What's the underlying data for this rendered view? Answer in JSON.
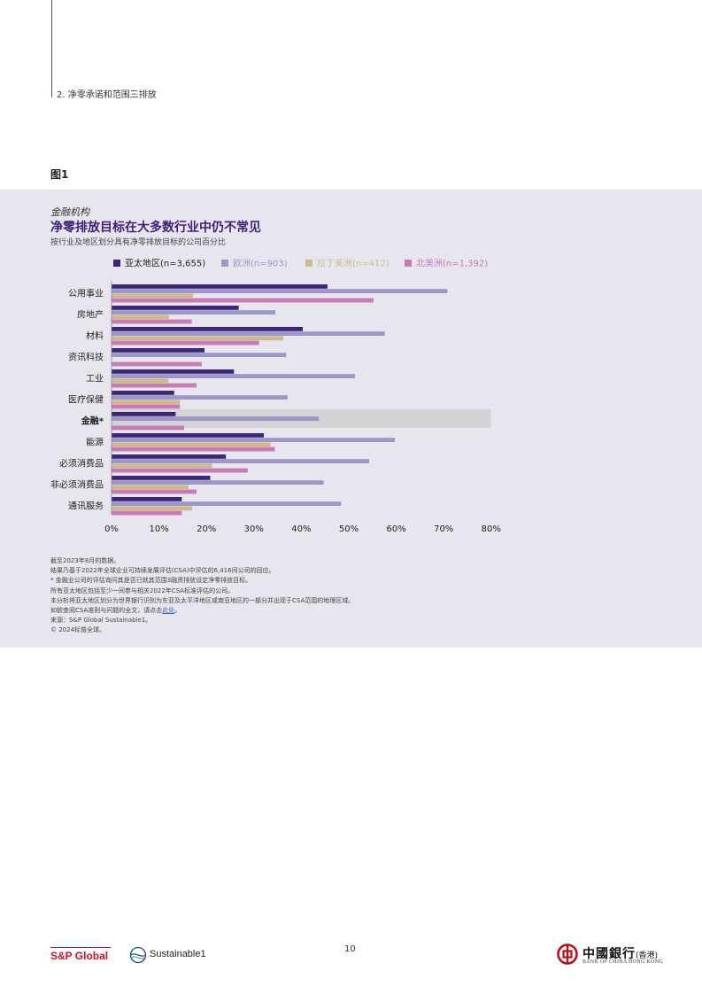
{
  "header": {
    "section": "2. 净零承诺和范围三排放"
  },
  "figure_label": "图1",
  "chart_data": {
    "type": "bar",
    "orientation": "horizontal",
    "kicker": "金融机构",
    "title": "净零排放目标在大多数行业中仍不常见",
    "subtitle": "按行业及地区划分具有净零排放目标的公司百分比",
    "categories": [
      "公用事业",
      "房地产",
      "材料",
      "资讯科技",
      "工业",
      "医疗保健",
      "金融*",
      "能源",
      "必须消费品",
      "非必须消费品",
      "通讯服务"
    ],
    "highlight_category": "金融*",
    "series": [
      {
        "name": "亚太地区(n=3,655)",
        "color": "#3d2478",
        "values": [
          45.5,
          26.8,
          40.3,
          19.6,
          25.8,
          13.2,
          13.5,
          32.1,
          24.1,
          20.8,
          14.8
        ]
      },
      {
        "name": "欧洲(n=903)",
        "color": "#9c97cb",
        "values": [
          70.8,
          34.5,
          57.6,
          36.8,
          51.3,
          37.1,
          43.7,
          59.7,
          54.3,
          44.7,
          48.4
        ]
      },
      {
        "name": "拉丁美洲(n=412)",
        "color": "#d2b98b",
        "values": [
          17.2,
          12.1,
          36.2,
          null,
          12.0,
          14.4,
          null,
          33.5,
          21.2,
          16.2,
          17.0
        ]
      },
      {
        "name": "北美洲(n=1,392)",
        "color": "#c979b5",
        "values": [
          55.2,
          16.9,
          31.1,
          19.0,
          17.9,
          14.4,
          15.3,
          34.4,
          28.7,
          17.9,
          14.8
        ]
      }
    ],
    "xlim": [
      0,
      80
    ],
    "xticks": [
      "0%",
      "10%",
      "20%",
      "30%",
      "40%",
      "50%",
      "60%",
      "70%",
      "80%"
    ],
    "legend_position": "top-left"
  },
  "notes": [
    "截至2023年8月的数据。",
    "结果乃基于2022年全球企业可持续发展评估(CSA)中评估的6,416间公司的回应。",
    "* 金融业公司的评估询问其是否已就其范围3融资排放设定净零排放目标。",
    "所有亚太地区包括至少一间参与相关2022年CSA标准评估的公司。",
    "本分析将亚太地区划分为世界银行识别为东亚及太平洋地区或南亚地区的一部分并出现于CSA范围的地理区域。"
  ],
  "note_link_prefix": "如欲查阅CSA准则与问题的全文，请点击",
  "note_link_text": "此处",
  "note_link_suffix": "。",
  "source": "来源：S&P Global Sustainable1。",
  "copyright": "© 2024标普全球。",
  "footer": {
    "brand": "S&P Global",
    "partner": "Sustainable1",
    "page_number": "10",
    "bank_cn": "中國銀行",
    "bank_hk": "(香港)",
    "bank_en": "BANK OF CHINA  HONG KONG"
  }
}
